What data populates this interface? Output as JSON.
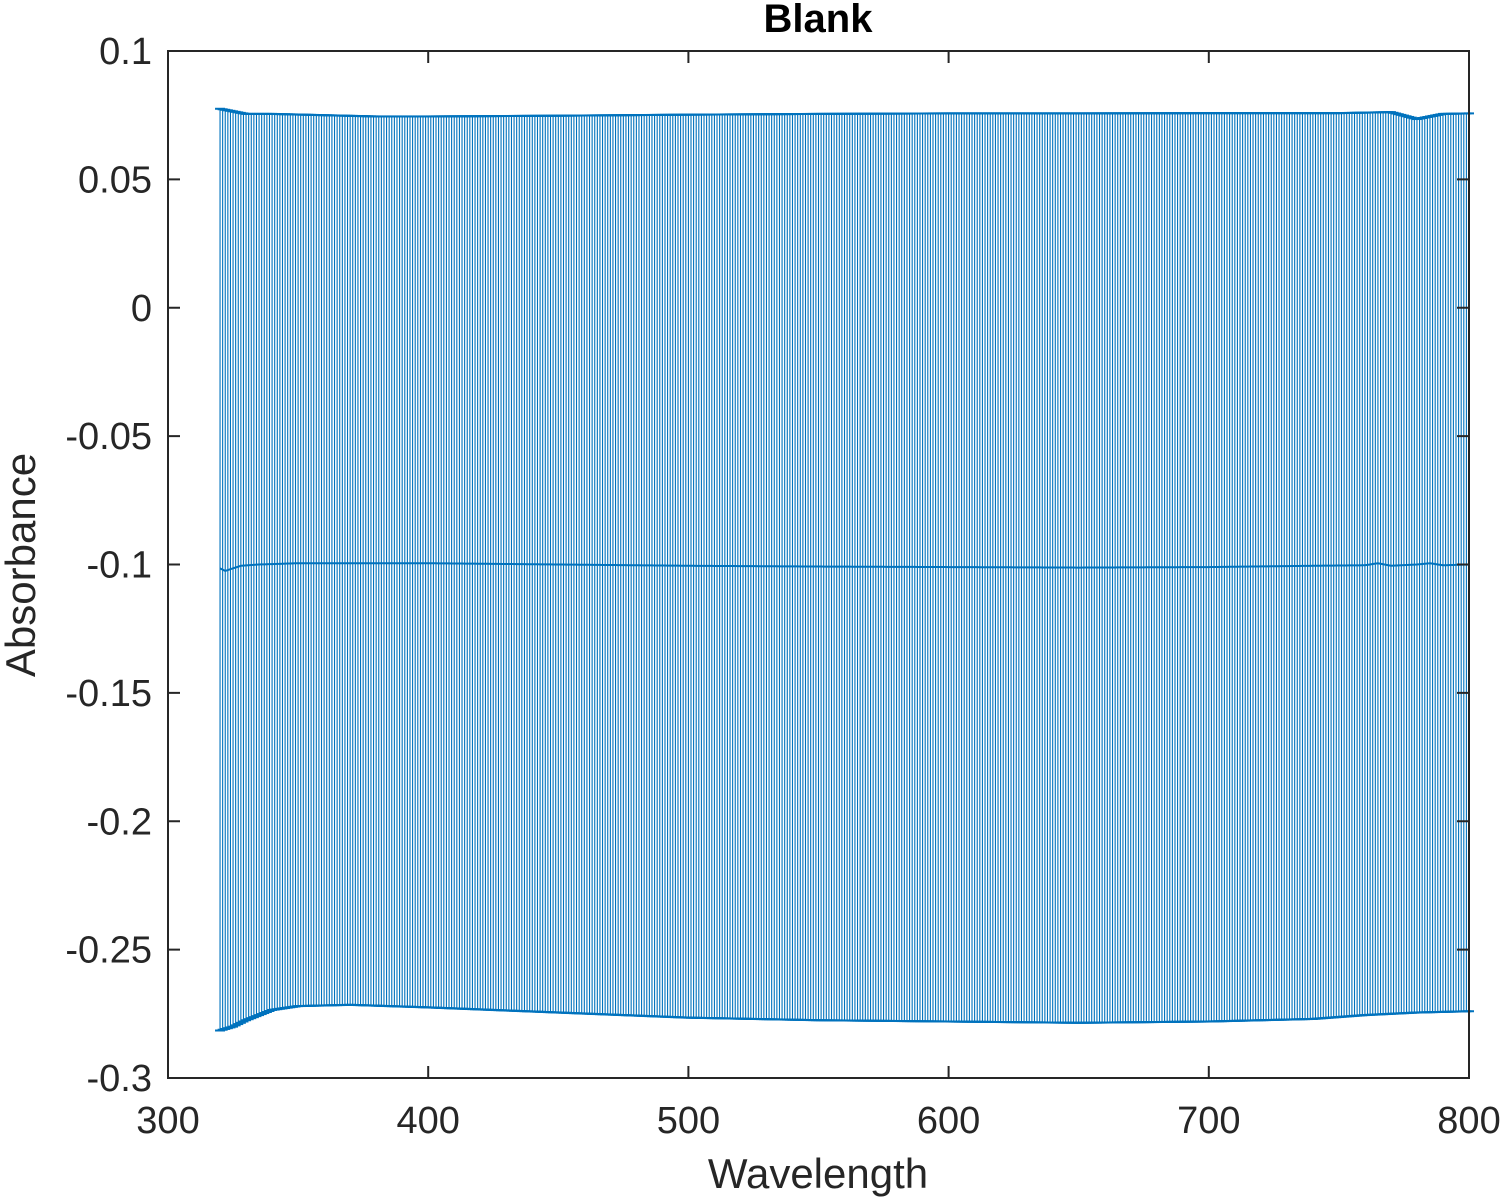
{
  "chart_data": {
    "type": "line",
    "subtype": "errorbar",
    "title": "Blank",
    "xlabel": "Wavelength",
    "ylabel": "Absorbance",
    "xlim": [
      300,
      800
    ],
    "ylim": [
      -0.3,
      0.1
    ],
    "xticks": [
      300,
      400,
      500,
      600,
      700,
      800
    ],
    "xtick_labels": [
      "300",
      "400",
      "500",
      "600",
      "700",
      "800"
    ],
    "yticks": [
      -0.3,
      -0.25,
      -0.2,
      -0.15,
      -0.1,
      -0.05,
      0,
      0.05,
      0.1
    ],
    "ytick_labels": [
      "-0.3",
      "-0.25",
      "-0.2",
      "-0.15",
      "-0.1",
      "-0.05",
      "0",
      "0.05",
      "0.1"
    ],
    "grid": false,
    "box": true,
    "color": "#0072BD",
    "x_range": [
      320,
      800
    ],
    "x_step": 1,
    "mean_anchors": {
      "x": [
        320,
        322,
        325,
        328,
        335,
        350,
        370,
        400,
        450,
        500,
        550,
        600,
        650,
        700,
        740,
        760,
        765,
        770,
        780,
        785,
        790,
        800
      ],
      "y": [
        -0.1015,
        -0.1025,
        -0.1015,
        -0.1005,
        -0.1,
        -0.0995,
        -0.0995,
        -0.0995,
        -0.1,
        -0.1005,
        -0.1008,
        -0.101,
        -0.1012,
        -0.101,
        -0.1005,
        -0.1003,
        -0.0995,
        -0.1005,
        -0.1,
        -0.0995,
        -0.1003,
        -0.1
      ]
    },
    "upper_anchors": {
      "x": [
        320,
        330,
        340,
        360,
        380,
        400,
        450,
        500,
        550,
        600,
        650,
        700,
        750,
        770,
        780,
        785,
        790,
        800
      ],
      "y": [
        0.0775,
        0.0755,
        0.0755,
        0.075,
        0.0745,
        0.0745,
        0.0748,
        0.0752,
        0.0755,
        0.0757,
        0.0757,
        0.0758,
        0.0758,
        0.0762,
        0.0735,
        0.0745,
        0.0755,
        0.0757
      ]
    },
    "lower_anchors": {
      "x": [
        320,
        325,
        330,
        340,
        350,
        370,
        400,
        450,
        500,
        550,
        600,
        650,
        700,
        740,
        760,
        780,
        800
      ],
      "y": [
        -0.2815,
        -0.28,
        -0.2775,
        -0.2735,
        -0.272,
        -0.2715,
        -0.2725,
        -0.2745,
        -0.2765,
        -0.2775,
        -0.278,
        -0.2785,
        -0.278,
        -0.277,
        -0.2755,
        -0.2745,
        -0.274
      ]
    }
  }
}
